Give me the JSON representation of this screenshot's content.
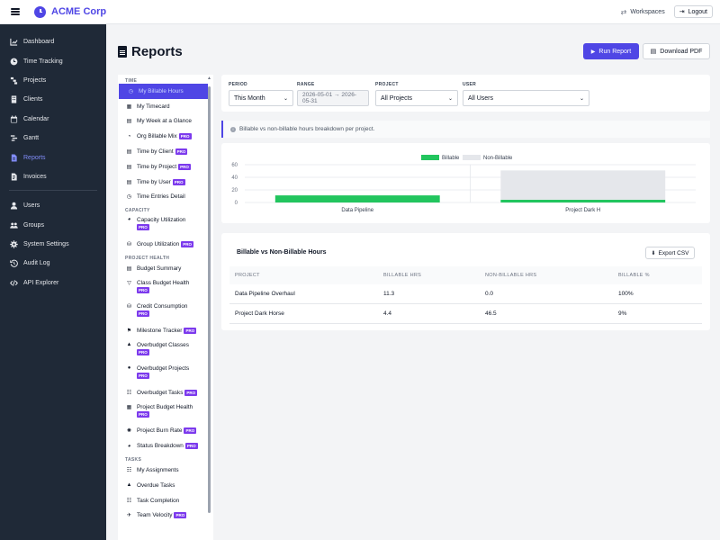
{
  "app": {
    "brand": "ACME Corp",
    "workspaces_label": "Workspaces",
    "logout_label": "Logout"
  },
  "sidebar": {
    "items": [
      {
        "label": "Dashboard",
        "icon": "chart-icon"
      },
      {
        "label": "Time Tracking",
        "icon": "clock-icon"
      },
      {
        "label": "Projects",
        "icon": "project-icon"
      },
      {
        "label": "Clients",
        "icon": "building-icon"
      },
      {
        "label": "Calendar",
        "icon": "calendar-icon"
      },
      {
        "label": "Gantt",
        "icon": "gantt-icon"
      },
      {
        "label": "Reports",
        "icon": "report-icon",
        "active": true
      },
      {
        "label": "Invoices",
        "icon": "invoice-icon"
      }
    ],
    "admin_items": [
      {
        "label": "Users",
        "icon": "users-icon"
      },
      {
        "label": "Groups",
        "icon": "groups-icon"
      },
      {
        "label": "System Settings",
        "icon": "gear-icon"
      },
      {
        "label": "Audit Log",
        "icon": "history-icon"
      },
      {
        "label": "API Explorer",
        "icon": "code-icon"
      }
    ],
    "accent_color": "#818cf8"
  },
  "page": {
    "title": "Reports",
    "run_label": "Run Report",
    "pdf_label": "Download PDF"
  },
  "report_list": {
    "pro_label": "PRO",
    "groups": [
      {
        "title": "TIME",
        "items": [
          {
            "label": "My Billable Hours",
            "active": true
          },
          {
            "label": "My Timecard"
          },
          {
            "label": "My Week at a Glance"
          },
          {
            "label": "Org Billable Mix",
            "pro": true
          },
          {
            "label": "Time by Client",
            "pro": true
          },
          {
            "label": "Time by Project",
            "pro": true
          },
          {
            "label": "Time by User",
            "pro": true
          },
          {
            "label": "Time Entries Detail"
          }
        ]
      },
      {
        "title": "CAPACITY",
        "items": [
          {
            "label": "Capacity Utilization",
            "pro": true,
            "wrap": true
          },
          {
            "label": "Group Utilization",
            "pro": true
          }
        ]
      },
      {
        "title": "PROJECT HEALTH",
        "items": [
          {
            "label": "Budget Summary"
          },
          {
            "label": "Class Budget Health",
            "pro": true,
            "wrap": true
          },
          {
            "label": "Credit Consumption",
            "pro": true,
            "wrap": true
          },
          {
            "label": "Milestone Tracker",
            "pro": true
          },
          {
            "label": "Overbudget Classes",
            "pro": true,
            "wrap": true
          },
          {
            "label": "Overbudget Projects",
            "pro": true,
            "wrap": true
          },
          {
            "label": "Overbudget Tasks",
            "pro": true
          },
          {
            "label": "Project Budget Health",
            "pro": true,
            "wrap": true
          },
          {
            "label": "Project Burn Rate",
            "pro": true
          },
          {
            "label": "Status Breakdown",
            "pro": true
          }
        ]
      },
      {
        "title": "TASKS",
        "items": [
          {
            "label": "My Assignments"
          },
          {
            "label": "Overdue Tasks"
          },
          {
            "label": "Task Completion"
          },
          {
            "label": "Team Velocity",
            "pro": true
          }
        ]
      }
    ]
  },
  "filters": {
    "period": {
      "label": "PERIOD",
      "value": "This Month"
    },
    "range": {
      "label": "RANGE",
      "value": "2026-05-01 → 2026-05-31"
    },
    "project": {
      "label": "PROJECT",
      "value": "All Projects"
    },
    "user": {
      "label": "USER",
      "value": "All Users"
    }
  },
  "info_text": "Billable vs non-billable hours breakdown per project.",
  "chart_data": {
    "type": "bar",
    "stacked": true,
    "categories": [
      "Data Pipeline",
      "Project Dark H"
    ],
    "series": [
      {
        "name": "Billable",
        "color": "#22c55e",
        "values": [
          11.3,
          4.4
        ]
      },
      {
        "name": "Non-Billable",
        "color": "#e5e7eb",
        "values": [
          0.0,
          46.5
        ]
      }
    ],
    "ylim": [
      0,
      60
    ],
    "yticks": [
      "0",
      "20",
      "40",
      "60"
    ],
    "legend": "top-center",
    "grid": true
  },
  "table": {
    "title": "Billable vs Non-Billable Hours",
    "export_label": "Export CSV",
    "columns": [
      "PROJECT",
      "BILLABLE HRS",
      "NON-BILLABLE HRS",
      "BILLABLE %"
    ],
    "rows": [
      [
        "Data Pipeline Overhaul",
        "11.3",
        "0.0",
        "100%"
      ],
      [
        "Project Dark Horse",
        "4.4",
        "46.5",
        "9%"
      ]
    ]
  }
}
